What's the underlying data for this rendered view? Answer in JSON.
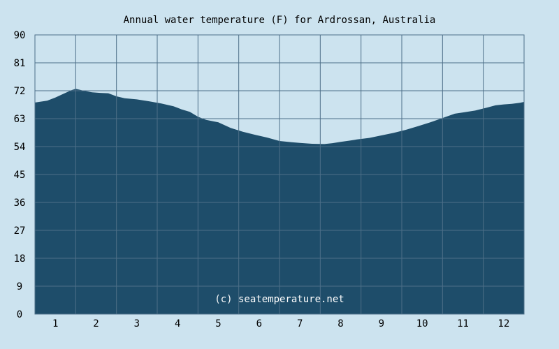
{
  "chart_data": {
    "type": "area",
    "title": "Annual water temperature (F) for Ardrossan, Australia",
    "watermark": "(c) seatemperature.net",
    "xlabel": "",
    "ylabel": "",
    "ylim": [
      0,
      90
    ],
    "yticks": [
      "0",
      "9",
      "18",
      "27",
      "36",
      "45",
      "54",
      "63",
      "72",
      "81",
      "90"
    ],
    "xticks": [
      "1",
      "2",
      "3",
      "4",
      "5",
      "6",
      "7",
      "8",
      "9",
      "10",
      "11",
      "12"
    ],
    "grid": true,
    "fill_color": "#1e4d6a",
    "background_color": "#cce3ef",
    "grid_color": "#4d6f88",
    "x": [
      0.5,
      0.8,
      1.0,
      1.2,
      1.4,
      1.5,
      1.7,
      1.9,
      2.1,
      2.3,
      2.5,
      2.7,
      3.0,
      3.3,
      3.6,
      3.9,
      4.1,
      4.3,
      4.5,
      4.7,
      5.0,
      5.3,
      5.6,
      5.9,
      6.2,
      6.5,
      6.8,
      7.0,
      7.3,
      7.6,
      7.8,
      8.0,
      8.2,
      8.4,
      8.7,
      9.0,
      9.3,
      9.6,
      9.9,
      10.2,
      10.5,
      10.8,
      11.0,
      11.3,
      11.6,
      11.8,
      12.0,
      12.2,
      12.4,
      12.5
    ],
    "y": [
      68.2,
      68.8,
      69.8,
      71.0,
      72.2,
      72.6,
      72.0,
      71.5,
      71.3,
      71.2,
      70.2,
      69.6,
      69.2,
      68.6,
      67.9,
      67.0,
      66.0,
      65.2,
      63.6,
      62.6,
      61.8,
      60.0,
      58.8,
      57.8,
      56.9,
      55.8,
      55.4,
      55.2,
      54.9,
      54.8,
      55.1,
      55.5,
      55.9,
      56.3,
      56.8,
      57.6,
      58.4,
      59.4,
      60.6,
      61.8,
      63.2,
      64.6,
      65.0,
      65.6,
      66.6,
      67.3,
      67.6,
      67.8,
      68.1,
      68.4
    ]
  }
}
